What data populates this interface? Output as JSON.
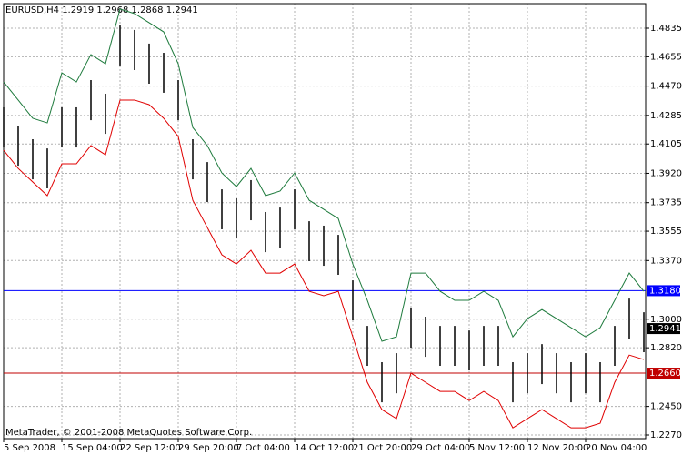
{
  "chart_data": {
    "type": "ohlc",
    "title": "EURUSD,H4  1.2919 1.2968 1.2868 1.2941",
    "footer": "MetaTrader, © 2001-2008 MetaQuotes Software Corp.",
    "categories": [
      "5 Sep 2008",
      null,
      null,
      null,
      "15 Sep 04:00",
      null,
      null,
      null,
      "22 Sep 12:00",
      null,
      null,
      null,
      "29 Sep 20:00",
      null,
      null,
      null,
      "7 Oct 04:00",
      null,
      null,
      null,
      "14 Oct 12:00",
      null,
      null,
      null,
      "21 Oct 20:00",
      null,
      null,
      null,
      "29 Oct 04:00",
      null,
      null,
      null,
      "5 Nov 12:00",
      null,
      null,
      null,
      "12 Nov 20:00",
      null,
      null,
      null,
      "20 Nov 04:00",
      null,
      null,
      null,
      null
    ],
    "high": [
      1.4336,
      1.4221,
      1.4135,
      1.4077,
      1.4336,
      1.4336,
      1.4508,
      1.4422,
      1.4852,
      1.4824,
      1.4738,
      1.468,
      1.4508,
      1.4135,
      1.3991,
      1.3819,
      1.3762,
      1.3877,
      1.3676,
      1.3704,
      1.3819,
      1.3618,
      1.359,
      1.3532,
      1.3245,
      1.2958,
      1.2729,
      1.2786,
      1.3073,
      1.3016,
      1.2958,
      1.2958,
      1.2929,
      1.2958,
      1.2958,
      1.2729,
      1.2786,
      1.2843,
      1.2786,
      1.2729,
      1.2786,
      1.2729,
      1.2958,
      1.313,
      1.3044
    ],
    "low": [
      1.4083,
      1.3968,
      1.3882,
      1.3825,
      1.4083,
      1.4083,
      1.4255,
      1.4169,
      1.46,
      1.4571,
      1.4485,
      1.4428,
      1.4255,
      1.3882,
      1.3739,
      1.3567,
      1.3509,
      1.3624,
      1.3423,
      1.3452,
      1.3567,
      1.3366,
      1.3337,
      1.328,
      1.2993,
      1.2706,
      1.2476,
      1.2533,
      1.282,
      1.2763,
      1.2706,
      1.2706,
      1.2677,
      1.2706,
      1.2706,
      1.2476,
      1.2533,
      1.2591,
      1.2533,
      1.2476,
      1.2533,
      1.2476,
      1.2706,
      1.2878,
      1.2792
    ],
    "bar_color": "#000000",
    "upper": [
      1.4496,
      1.4382,
      1.4267,
      1.4238,
      1.4554,
      1.4496,
      1.4669,
      1.4611,
      1.4956,
      1.4927,
      1.487,
      1.4812,
      1.4611,
      1.4209,
      1.4095,
      1.3922,
      1.3836,
      1.3951,
      1.3779,
      1.3808,
      1.3922,
      1.375,
      1.3693,
      1.3635,
      1.3348,
      1.3119,
      1.2861,
      1.2889,
      1.3291,
      1.3291,
      1.3176,
      1.3119,
      1.3119,
      1.3176,
      1.3119,
      1.2889,
      1.3004,
      1.3061,
      1.3004,
      1.2947,
      1.2889,
      1.2947,
      1.3119,
      1.3291,
      1.3176
    ],
    "upper_color": "#1d7a3c",
    "lower": [
      1.4066,
      1.3951,
      1.3865,
      1.3779,
      1.398,
      1.398,
      1.4095,
      1.4037,
      1.4382,
      1.4382,
      1.4353,
      1.4267,
      1.4152,
      1.375,
      1.3578,
      1.3406,
      1.3348,
      1.3435,
      1.3291,
      1.3291,
      1.3348,
      1.3176,
      1.3148,
      1.3176,
      1.2889,
      1.2602,
      1.243,
      1.2373,
      1.266,
      1.2602,
      1.2545,
      1.2545,
      1.2487,
      1.2545,
      1.2487,
      1.2315,
      1.2373,
      1.243,
      1.2373,
      1.2315,
      1.2315,
      1.2344,
      1.2602,
      1.2774,
      1.2746
    ],
    "lower_color": "#e00000",
    "ylim": [
      1.2247,
      1.499
    ],
    "yticks": [
      1.4835,
      1.4655,
      {
        "value": 1.447,
        "label": "1.4470"
      },
      1.4285,
      1.4105,
      {
        "value": 1.392,
        "label": "1.3920"
      },
      1.3735,
      1.3555,
      {
        "value": 1.337,
        "label": "1.3370"
      },
      {
        "value": 1.3,
        "label": "1.3000"
      },
      {
        "value": 1.282,
        "label": "1.2820"
      },
      {
        "value": 1.245,
        "label": "1.2450"
      },
      {
        "value": 1.227,
        "label": "1.2270"
      }
    ],
    "levels": [
      {
        "value": 1.318,
        "label": "1.3180",
        "color": "#0000ff"
      },
      {
        "value": 1.266,
        "label": "1.2660",
        "color": "#c00000"
      }
    ],
    "current": {
      "value": 1.2941,
      "label": "1.2941"
    },
    "grid": true
  }
}
